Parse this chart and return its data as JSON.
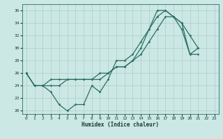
{
  "xlabel": "Humidex (Indice chaleur)",
  "bg_color": "#cce8e4",
  "grid_color": "#aacccc",
  "line_color": "#2a6e65",
  "xlim": [
    -0.5,
    23.5
  ],
  "ylim": [
    19.5,
    37
  ],
  "xticks": [
    0,
    1,
    2,
    3,
    4,
    5,
    6,
    7,
    8,
    9,
    10,
    11,
    12,
    13,
    14,
    15,
    16,
    17,
    18,
    19,
    20,
    21,
    22,
    23
  ],
  "yticks": [
    20,
    22,
    24,
    26,
    28,
    30,
    32,
    34,
    36
  ],
  "line1_y": [
    26,
    24,
    24,
    23,
    21,
    20,
    21,
    21,
    24,
    23,
    25,
    28,
    28,
    29,
    31,
    33,
    36,
    36,
    35,
    33,
    29,
    30,
    null,
    null
  ],
  "line2_y": [
    26,
    24,
    24,
    24,
    24,
    25,
    25,
    25,
    25,
    25,
    26,
    27,
    27,
    28,
    30,
    33,
    35,
    36,
    35,
    34,
    32,
    30,
    null,
    null
  ],
  "line3_y": [
    26,
    24,
    24,
    25,
    25,
    25,
    25,
    25,
    25,
    26,
    26,
    27,
    27,
    28,
    29,
    31,
    33,
    35,
    35,
    34,
    29,
    29,
    null,
    null
  ]
}
